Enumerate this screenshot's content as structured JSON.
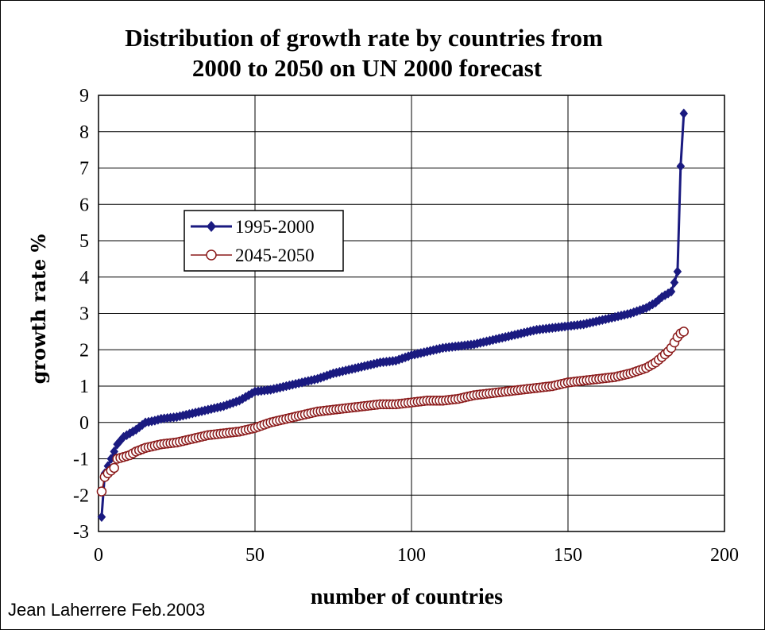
{
  "credit": "Jean Laherrere Feb.2003",
  "chart_data": {
    "type": "line",
    "title_lines": [
      "Distribution of growth rate by countries from",
      "2000 to 2050 on UN 2000 forecast"
    ],
    "xlabel": "number of countries",
    "ylabel": "growth rate %",
    "xlim": [
      0,
      200
    ],
    "ylim": [
      -3,
      9
    ],
    "x_ticks": [
      "0",
      "50",
      "100",
      "150",
      "200"
    ],
    "y_ticks": [
      "-3",
      "-2",
      "-1",
      "0",
      "1",
      "2",
      "3",
      "4",
      "5",
      "6",
      "7",
      "8",
      "9"
    ],
    "grid": true,
    "legend_position": "middle-left",
    "colors": {
      "series1": "#1a1a80",
      "series2": "#8b1a1a"
    },
    "series": [
      {
        "name": "1995-2000",
        "marker": "diamond",
        "points": [
          [
            1,
            -2.6
          ],
          [
            2,
            -1.4
          ],
          [
            3,
            -1.2
          ],
          [
            4,
            -1.0
          ],
          [
            5,
            -0.8
          ],
          [
            6,
            -0.6
          ],
          [
            8,
            -0.4
          ],
          [
            10,
            -0.3
          ],
          [
            12,
            -0.2
          ],
          [
            15,
            0.0
          ],
          [
            18,
            0.05
          ],
          [
            20,
            0.1
          ],
          [
            25,
            0.15
          ],
          [
            30,
            0.25
          ],
          [
            35,
            0.35
          ],
          [
            40,
            0.45
          ],
          [
            45,
            0.6
          ],
          [
            50,
            0.85
          ],
          [
            55,
            0.9
          ],
          [
            60,
            1.0
          ],
          [
            65,
            1.1
          ],
          [
            70,
            1.2
          ],
          [
            75,
            1.35
          ],
          [
            80,
            1.45
          ],
          [
            85,
            1.55
          ],
          [
            90,
            1.65
          ],
          [
            95,
            1.7
          ],
          [
            100,
            1.85
          ],
          [
            105,
            1.95
          ],
          [
            110,
            2.05
          ],
          [
            115,
            2.1
          ],
          [
            120,
            2.15
          ],
          [
            125,
            2.25
          ],
          [
            130,
            2.35
          ],
          [
            135,
            2.45
          ],
          [
            140,
            2.55
          ],
          [
            145,
            2.6
          ],
          [
            150,
            2.65
          ],
          [
            155,
            2.7
          ],
          [
            160,
            2.8
          ],
          [
            165,
            2.9
          ],
          [
            170,
            3.0
          ],
          [
            175,
            3.15
          ],
          [
            178,
            3.3
          ],
          [
            180,
            3.45
          ],
          [
            182,
            3.55
          ],
          [
            183,
            3.6
          ],
          [
            184,
            3.85
          ],
          [
            185,
            4.15
          ],
          [
            186,
            7.05
          ],
          [
            187,
            8.5
          ]
        ]
      },
      {
        "name": "2045-2050",
        "marker": "circle",
        "points": [
          [
            1,
            -1.9
          ],
          [
            2,
            -1.5
          ],
          [
            3,
            -1.4
          ],
          [
            5,
            -1.25
          ],
          [
            6,
            -1.0
          ],
          [
            8,
            -0.95
          ],
          [
            10,
            -0.9
          ],
          [
            12,
            -0.8
          ],
          [
            15,
            -0.7
          ],
          [
            20,
            -0.6
          ],
          [
            25,
            -0.55
          ],
          [
            30,
            -0.45
          ],
          [
            35,
            -0.35
          ],
          [
            40,
            -0.3
          ],
          [
            45,
            -0.25
          ],
          [
            50,
            -0.15
          ],
          [
            55,
            0.0
          ],
          [
            60,
            0.1
          ],
          [
            65,
            0.2
          ],
          [
            70,
            0.3
          ],
          [
            75,
            0.35
          ],
          [
            80,
            0.4
          ],
          [
            85,
            0.45
          ],
          [
            90,
            0.5
          ],
          [
            95,
            0.5
          ],
          [
            100,
            0.55
          ],
          [
            105,
            0.6
          ],
          [
            110,
            0.6
          ],
          [
            115,
            0.65
          ],
          [
            120,
            0.75
          ],
          [
            125,
            0.8
          ],
          [
            130,
            0.85
          ],
          [
            135,
            0.9
          ],
          [
            140,
            0.95
          ],
          [
            145,
            1.0
          ],
          [
            150,
            1.1
          ],
          [
            155,
            1.15
          ],
          [
            160,
            1.2
          ],
          [
            165,
            1.25
          ],
          [
            170,
            1.35
          ],
          [
            175,
            1.5
          ],
          [
            178,
            1.65
          ],
          [
            180,
            1.8
          ],
          [
            182,
            1.95
          ],
          [
            183,
            2.05
          ],
          [
            184,
            2.2
          ],
          [
            185,
            2.35
          ],
          [
            186,
            2.45
          ],
          [
            187,
            2.5
          ]
        ]
      }
    ]
  }
}
